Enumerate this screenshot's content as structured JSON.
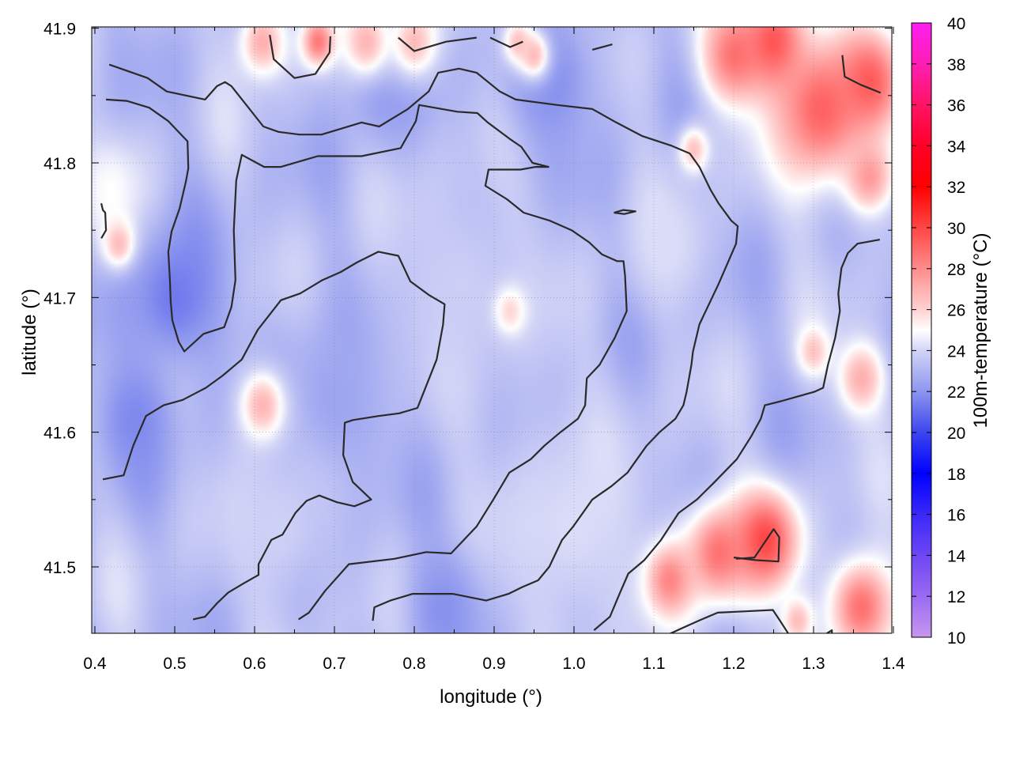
{
  "chart_data": {
    "type": "heatmap",
    "title": "",
    "xlabel": "longitude (°)",
    "ylabel": "latitude (°)",
    "colorbar_label": "100m-temperature (°C)",
    "xlim": [
      0.4,
      1.4
    ],
    "ylim": [
      41.45,
      41.9
    ],
    "x_ticks": [
      0.4,
      0.5,
      0.6,
      0.7,
      0.8,
      0.9,
      1.0,
      1.1,
      1.2,
      1.3,
      1.4
    ],
    "x_tick_labels": [
      "0.4",
      "0.5",
      "0.6",
      "0.7",
      "0.8",
      "0.9",
      "1.0",
      "1.1",
      "1.2",
      "1.3",
      "1.4"
    ],
    "y_ticks": [
      41.5,
      41.6,
      41.7,
      41.8,
      41.9
    ],
    "y_tick_labels": [
      "41.5",
      "41.6",
      "41.7",
      "41.8",
      "41.9"
    ],
    "colorbar_range": [
      10,
      40
    ],
    "colorbar_ticks": [
      10,
      12,
      14,
      16,
      18,
      20,
      22,
      24,
      26,
      28,
      30,
      32,
      34,
      36,
      38,
      40
    ],
    "colorbar_tick_labels": [
      "10",
      "12",
      "14",
      "16",
      "18",
      "20",
      "22",
      "24",
      "26",
      "28",
      "30",
      "32",
      "34",
      "36",
      "38",
      "40"
    ],
    "colormap": [
      {
        "value": 10,
        "color": "#c896f0"
      },
      {
        "value": 12,
        "color": "#9a6af2"
      },
      {
        "value": 14,
        "color": "#6e46f4"
      },
      {
        "value": 16,
        "color": "#3a28f8"
      },
      {
        "value": 18,
        "color": "#0000ff"
      },
      {
        "value": 20,
        "color": "#3c46ee"
      },
      {
        "value": 22,
        "color": "#8c96ee"
      },
      {
        "value": 24,
        "color": "#d2d4f6"
      },
      {
        "value": 25,
        "color": "#ffffff"
      },
      {
        "value": 26,
        "color": "#ffd2d2"
      },
      {
        "value": 28,
        "color": "#ff8c8c"
      },
      {
        "value": 30,
        "color": "#ff4646"
      },
      {
        "value": 32,
        "color": "#ff0000"
      },
      {
        "value": 34,
        "color": "#ff0028"
      },
      {
        "value": 36,
        "color": "#ff1464"
      },
      {
        "value": 38,
        "color": "#ff1eb4"
      },
      {
        "value": 40,
        "color": "#ff1ef0"
      }
    ],
    "base_temperature": 23.3,
    "grid": true,
    "contour_color": "#2a2a2a",
    "field_anomalies": [
      {
        "lon": 0.5,
        "lat": 41.7,
        "r": 0.06,
        "temp": 21.3
      },
      {
        "lon": 0.45,
        "lat": 41.61,
        "r": 0.05,
        "temp": 21.7
      },
      {
        "lon": 0.76,
        "lat": 41.86,
        "r": 0.05,
        "temp": 22.0
      },
      {
        "lon": 0.97,
        "lat": 41.86,
        "r": 0.06,
        "temp": 21.8
      },
      {
        "lon": 0.84,
        "lat": 41.47,
        "r": 0.05,
        "temp": 21.8
      },
      {
        "lon": 0.7,
        "lat": 41.62,
        "r": 0.08,
        "temp": 22.4
      },
      {
        "lon": 0.86,
        "lat": 41.71,
        "r": 0.1,
        "temp": 23.8
      },
      {
        "lon": 1.0,
        "lat": 41.53,
        "r": 0.1,
        "temp": 24.2
      },
      {
        "lon": 0.63,
        "lat": 41.53,
        "r": 0.07,
        "temp": 23.9
      },
      {
        "lon": 1.12,
        "lat": 41.74,
        "r": 0.05,
        "temp": 24.2
      },
      {
        "lon": 0.42,
        "lat": 41.78,
        "r": 0.04,
        "temp": 25.0
      },
      {
        "lon": 0.43,
        "lat": 41.74,
        "r": 0.02,
        "temp": 26.6
      },
      {
        "lon": 0.61,
        "lat": 41.89,
        "r": 0.03,
        "temp": 27.0
      },
      {
        "lon": 0.68,
        "lat": 41.89,
        "r": 0.02,
        "temp": 28.6
      },
      {
        "lon": 0.74,
        "lat": 41.89,
        "r": 0.03,
        "temp": 26.8
      },
      {
        "lon": 0.8,
        "lat": 41.89,
        "r": 0.03,
        "temp": 26.6
      },
      {
        "lon": 0.93,
        "lat": 41.89,
        "r": 0.02,
        "temp": 26.4
      },
      {
        "lon": 0.95,
        "lat": 41.88,
        "r": 0.02,
        "temp": 26.6
      },
      {
        "lon": 1.2,
        "lat": 41.88,
        "r": 0.04,
        "temp": 28.6
      },
      {
        "lon": 1.25,
        "lat": 41.89,
        "r": 0.04,
        "temp": 29.6
      },
      {
        "lon": 1.31,
        "lat": 41.84,
        "r": 0.06,
        "temp": 29.2
      },
      {
        "lon": 1.37,
        "lat": 41.86,
        "r": 0.04,
        "temp": 29.4
      },
      {
        "lon": 1.37,
        "lat": 41.79,
        "r": 0.03,
        "temp": 27.6
      },
      {
        "lon": 1.15,
        "lat": 41.81,
        "r": 0.02,
        "temp": 26.4
      },
      {
        "lon": 0.61,
        "lat": 41.62,
        "r": 0.03,
        "temp": 26.8
      },
      {
        "lon": 0.92,
        "lat": 41.69,
        "r": 0.02,
        "temp": 25.9
      },
      {
        "lon": 1.36,
        "lat": 41.64,
        "r": 0.03,
        "temp": 27.0
      },
      {
        "lon": 1.3,
        "lat": 41.66,
        "r": 0.02,
        "temp": 26.4
      },
      {
        "lon": 1.18,
        "lat": 41.51,
        "r": 0.04,
        "temp": 28.6
      },
      {
        "lon": 1.24,
        "lat": 41.52,
        "r": 0.04,
        "temp": 30.0
      },
      {
        "lon": 1.12,
        "lat": 41.49,
        "r": 0.03,
        "temp": 28.2
      },
      {
        "lon": 1.36,
        "lat": 41.47,
        "r": 0.04,
        "temp": 28.8
      },
      {
        "lon": 1.28,
        "lat": 41.46,
        "r": 0.02,
        "temp": 26.6
      }
    ],
    "contours": [
      [
        [
          0.418,
          41.873
        ],
        [
          0.466,
          41.863
        ],
        [
          0.49,
          41.853
        ],
        [
          0.538,
          41.847
        ],
        [
          0.553,
          41.857
        ],
        [
          0.563,
          41.86
        ],
        [
          0.571,
          41.857
        ],
        [
          0.611,
          41.827
        ],
        [
          0.63,
          41.823
        ],
        [
          0.656,
          41.821
        ],
        [
          0.684,
          41.821
        ],
        [
          0.734,
          41.83
        ],
        [
          0.756,
          41.827
        ],
        [
          0.792,
          41.84
        ],
        [
          0.818,
          41.853
        ],
        [
          0.83,
          41.867
        ],
        [
          0.856,
          41.87
        ],
        [
          0.878,
          41.867
        ],
        [
          0.907,
          41.853
        ],
        [
          0.927,
          41.847
        ],
        [
          0.979,
          41.843
        ],
        [
          1.023,
          41.84
        ],
        [
          1.053,
          41.83
        ],
        [
          1.085,
          41.82
        ],
        [
          1.121,
          41.813
        ],
        [
          1.145,
          41.807
        ],
        [
          1.157,
          41.797
        ],
        [
          1.171,
          41.78
        ],
        [
          1.181,
          41.77
        ],
        [
          1.197,
          41.757
        ],
        [
          1.205,
          41.753
        ],
        [
          1.203,
          41.74
        ],
        [
          1.181,
          41.71
        ],
        [
          1.157,
          41.68
        ],
        [
          1.149,
          41.66
        ],
        [
          1.147,
          41.65
        ],
        [
          1.141,
          41.63
        ],
        [
          1.137,
          41.62
        ],
        [
          1.127,
          41.61
        ],
        [
          1.107,
          41.6
        ],
        [
          1.091,
          41.59
        ],
        [
          1.079,
          41.58
        ],
        [
          1.067,
          41.57
        ],
        [
          1.047,
          41.56
        ],
        [
          1.023,
          41.55
        ],
        [
          1.011,
          41.54
        ],
        [
          0.999,
          41.53
        ],
        [
          0.985,
          41.52
        ],
        [
          0.969,
          41.5
        ],
        [
          0.955,
          41.49
        ],
        [
          0.935,
          41.485
        ],
        [
          0.918,
          41.48
        ],
        [
          0.89,
          41.475
        ],
        [
          0.848,
          41.48
        ],
        [
          0.798,
          41.48
        ],
        [
          0.77,
          41.475
        ],
        [
          0.75,
          41.47
        ],
        [
          0.748,
          41.46
        ]
      ],
      [
        [
          0.414,
          41.847
        ],
        [
          0.44,
          41.846
        ],
        [
          0.468,
          41.841
        ],
        [
          0.492,
          41.831
        ],
        [
          0.516,
          41.816
        ],
        [
          0.517,
          41.796
        ],
        [
          0.514,
          41.786
        ],
        [
          0.506,
          41.766
        ],
        [
          0.496,
          41.749
        ],
        [
          0.492,
          41.734
        ],
        [
          0.494,
          41.713
        ],
        [
          0.495,
          41.697
        ],
        [
          0.497,
          41.683
        ],
        [
          0.505,
          41.667
        ],
        [
          0.512,
          41.66
        ],
        [
          0.536,
          41.673
        ],
        [
          0.562,
          41.678
        ],
        [
          0.571,
          41.693
        ],
        [
          0.576,
          41.713
        ],
        [
          0.574,
          41.75
        ],
        [
          0.577,
          41.787
        ],
        [
          0.584,
          41.806
        ],
        [
          0.612,
          41.797
        ],
        [
          0.633,
          41.797
        ],
        [
          0.679,
          41.805
        ],
        [
          0.734,
          41.805
        ],
        [
          0.783,
          41.811
        ],
        [
          0.802,
          41.831
        ],
        [
          0.806,
          41.843
        ],
        [
          0.854,
          41.838
        ],
        [
          0.879,
          41.837
        ],
        [
          0.892,
          41.83
        ],
        [
          0.919,
          41.818
        ],
        [
          0.934,
          41.812
        ],
        [
          0.948,
          41.8
        ],
        [
          0.968,
          41.797
        ],
        [
          0.952,
          41.797
        ],
        [
          0.933,
          41.795
        ],
        [
          0.893,
          41.795
        ],
        [
          0.889,
          41.783
        ],
        [
          0.916,
          41.773
        ],
        [
          0.937,
          41.763
        ],
        [
          0.97,
          41.757
        ],
        [
          0.997,
          41.75
        ],
        [
          1.019,
          41.741
        ],
        [
          1.035,
          41.732
        ],
        [
          1.054,
          41.727
        ],
        [
          1.062,
          41.727
        ],
        [
          1.064,
          41.716
        ],
        [
          1.066,
          41.69
        ],
        [
          1.051,
          41.67
        ],
        [
          1.032,
          41.65
        ],
        [
          1.016,
          41.64
        ],
        [
          1.014,
          41.62
        ],
        [
          1.005,
          41.61
        ],
        [
          0.983,
          41.6
        ],
        [
          0.963,
          41.59
        ],
        [
          0.946,
          41.58
        ],
        [
          0.919,
          41.57
        ],
        [
          0.899,
          41.55
        ],
        [
          0.878,
          41.53
        ],
        [
          0.846,
          41.51
        ],
        [
          0.815,
          41.511
        ],
        [
          0.775,
          41.506
        ],
        [
          0.718,
          41.502
        ],
        [
          0.688,
          41.482
        ],
        [
          0.668,
          41.466
        ],
        [
          0.655,
          41.461
        ]
      ],
      [
        [
          0.41,
          41.565
        ],
        [
          0.436,
          41.568
        ],
        [
          0.448,
          41.59
        ],
        [
          0.464,
          41.612
        ],
        [
          0.486,
          41.62
        ],
        [
          0.51,
          41.624
        ],
        [
          0.539,
          41.633
        ],
        [
          0.56,
          41.642
        ],
        [
          0.584,
          41.654
        ],
        [
          0.604,
          41.676
        ],
        [
          0.633,
          41.698
        ],
        [
          0.657,
          41.703
        ],
        [
          0.685,
          41.713
        ],
        [
          0.708,
          41.719
        ],
        [
          0.728,
          41.726
        ],
        [
          0.755,
          41.734
        ],
        [
          0.78,
          41.731
        ],
        [
          0.795,
          41.712
        ],
        [
          0.818,
          41.702
        ],
        [
          0.838,
          41.695
        ],
        [
          0.836,
          41.68
        ],
        [
          0.828,
          41.654
        ],
        [
          0.818,
          41.639
        ],
        [
          0.804,
          41.618
        ],
        [
          0.781,
          41.614
        ],
        [
          0.755,
          41.612
        ],
        [
          0.723,
          41.609
        ],
        [
          0.713,
          41.607
        ],
        [
          0.711,
          41.583
        ],
        [
          0.723,
          41.563
        ],
        [
          0.746,
          41.55
        ],
        [
          0.725,
          41.545
        ],
        [
          0.703,
          41.548
        ],
        [
          0.681,
          41.553
        ],
        [
          0.665,
          41.549
        ],
        [
          0.651,
          41.54
        ],
        [
          0.635,
          41.524
        ],
        [
          0.621,
          41.52
        ],
        [
          0.605,
          41.502
        ],
        [
          0.605,
          41.494
        ],
        [
          0.587,
          41.488
        ],
        [
          0.567,
          41.481
        ],
        [
          0.553,
          41.473
        ],
        [
          0.538,
          41.463
        ],
        [
          0.523,
          41.461
        ]
      ],
      [
        [
          1.383,
          41.743
        ],
        [
          1.355,
          41.74
        ],
        [
          1.343,
          41.733
        ],
        [
          1.335,
          41.722
        ],
        [
          1.331,
          41.703
        ],
        [
          1.333,
          41.69
        ],
        [
          1.327,
          41.67
        ],
        [
          1.318,
          41.65
        ],
        [
          1.312,
          41.633
        ],
        [
          1.301,
          41.63
        ],
        [
          1.283,
          41.627
        ],
        [
          1.259,
          41.623
        ],
        [
          1.239,
          41.62
        ],
        [
          1.234,
          41.61
        ],
        [
          1.222,
          41.597
        ],
        [
          1.204,
          41.58
        ],
        [
          1.176,
          41.563
        ],
        [
          1.154,
          41.55
        ],
        [
          1.131,
          41.54
        ],
        [
          1.109,
          41.52
        ],
        [
          1.088,
          41.505
        ],
        [
          1.068,
          41.495
        ],
        [
          1.057,
          41.48
        ],
        [
          1.045,
          41.463
        ],
        [
          1.025,
          41.453
        ]
      ],
      [
        [
          1.203,
          41.506
        ],
        [
          1.226,
          41.507
        ],
        [
          1.25,
          41.528
        ],
        [
          1.257,
          41.522
        ],
        [
          1.256,
          41.504
        ],
        [
          1.228,
          41.505
        ],
        [
          1.2,
          41.507
        ]
      ],
      [
        [
          1.115,
          41.449
        ],
        [
          1.137,
          41.455
        ],
        [
          1.16,
          41.461
        ],
        [
          1.18,
          41.466
        ],
        [
          1.215,
          41.467
        ],
        [
          1.249,
          41.468
        ],
        [
          1.258,
          41.46
        ],
        [
          1.27,
          41.449
        ]
      ],
      [
        [
          1.336,
          41.88
        ],
        [
          1.339,
          41.864
        ],
        [
          1.359,
          41.858
        ],
        [
          1.384,
          41.852
        ]
      ],
      [
        [
          1.05,
          41.763
        ],
        [
          1.062,
          41.765
        ],
        [
          1.077,
          41.764
        ],
        [
          1.063,
          41.762
        ],
        [
          1.05,
          41.763
        ]
      ],
      [
        [
          0.408,
          41.77
        ],
        [
          0.41,
          41.765
        ],
        [
          0.413,
          41.763
        ],
        [
          0.414,
          41.75
        ],
        [
          0.408,
          41.744
        ]
      ],
      [
        [
          0.619,
          41.895
        ],
        [
          0.624,
          41.877
        ],
        [
          0.65,
          41.863
        ],
        [
          0.676,
          41.866
        ],
        [
          0.694,
          41.882
        ],
        [
          0.695,
          41.894
        ]
      ],
      [
        [
          0.78,
          41.893
        ],
        [
          0.8,
          41.883
        ],
        [
          0.84,
          41.89
        ],
        [
          0.878,
          41.893
        ]
      ],
      [
        [
          0.895,
          41.893
        ],
        [
          0.92,
          41.886
        ],
        [
          0.936,
          41.89
        ]
      ],
      [
        [
          1.023,
          41.884
        ],
        [
          1.048,
          41.888
        ]
      ],
      [
        [
          1.315,
          41.45
        ],
        [
          1.323,
          41.453
        ],
        [
          1.323,
          41.449
        ]
      ]
    ]
  }
}
